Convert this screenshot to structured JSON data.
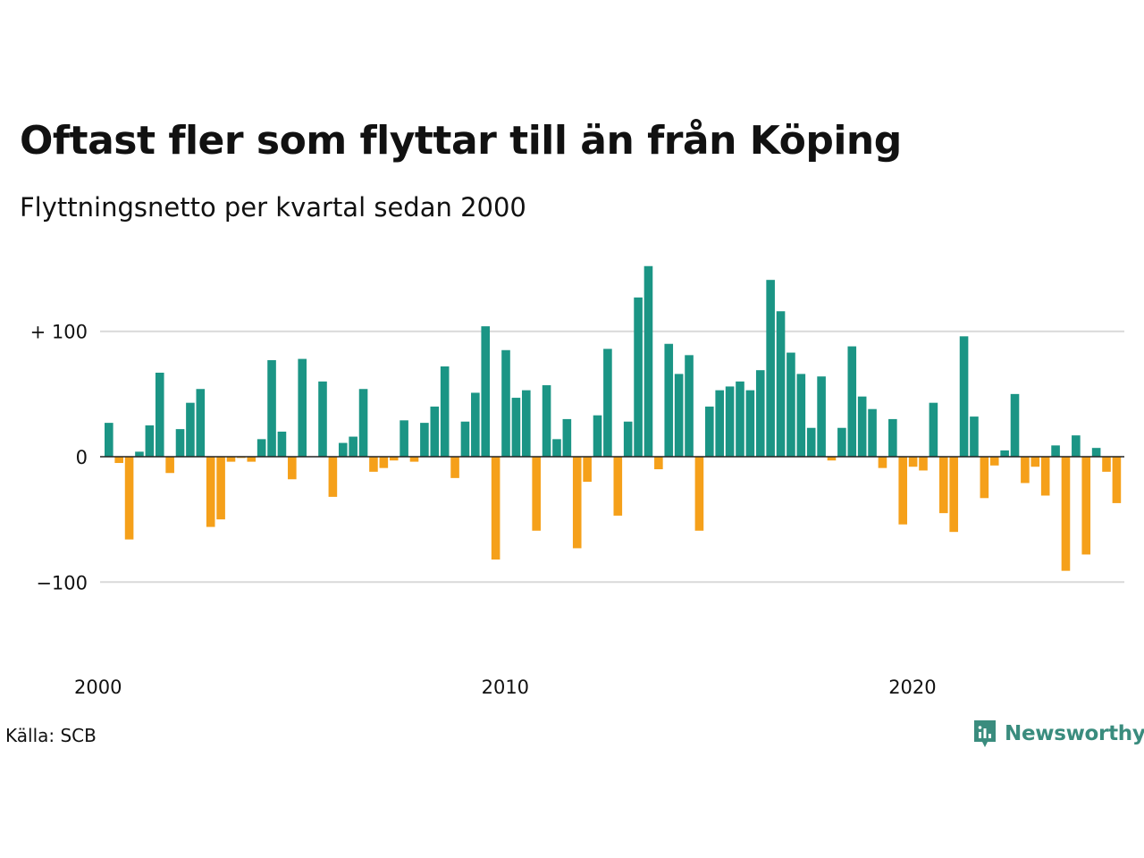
{
  "title": "Oftast fler som flyttar till än från Köping",
  "subtitle": "Flyttningsnetto per kvartal sedan 2000",
  "source": "Källa: SCB",
  "brand": "Newsworthy",
  "colors": {
    "positive": "#1b9585",
    "negative": "#f5a01a",
    "brand": "#3a8c7e",
    "grid": "#d9d9d9",
    "zero": "#222222"
  },
  "chart_data": {
    "type": "bar",
    "ylim": [
      -150,
      165
    ],
    "ytick_values": [
      100,
      0,
      -100
    ],
    "ytick_labels": [
      "+ 100",
      "0",
      "−100"
    ],
    "xtick_labels": [
      "2000",
      "2010",
      "2020"
    ],
    "x_start_year": 2000,
    "grid": true,
    "values": [
      27,
      -5,
      -66,
      4,
      25,
      67,
      -13,
      22,
      43,
      54,
      -56,
      -50,
      -4,
      -1,
      -4,
      14,
      77,
      20,
      -18,
      78,
      0,
      60,
      -32,
      11,
      16,
      54,
      -12,
      -9,
      -3,
      29,
      -4,
      27,
      40,
      72,
      -17,
      28,
      51,
      104,
      -82,
      85,
      47,
      53,
      -59,
      57,
      14,
      30,
      -73,
      -20,
      33,
      86,
      -47,
      28,
      127,
      152,
      -10,
      90,
      66,
      81,
      -59,
      40,
      53,
      56,
      60,
      53,
      69,
      141,
      116,
      83,
      66,
      23,
      64,
      -3,
      23,
      88,
      48,
      38,
      -9,
      30,
      -54,
      -8,
      -11,
      43,
      -45,
      -60,
      96,
      32,
      -33,
      -7,
      5,
      50,
      -21,
      -8,
      -31,
      9,
      -91,
      17,
      -78,
      7,
      -12,
      -37
    ]
  }
}
